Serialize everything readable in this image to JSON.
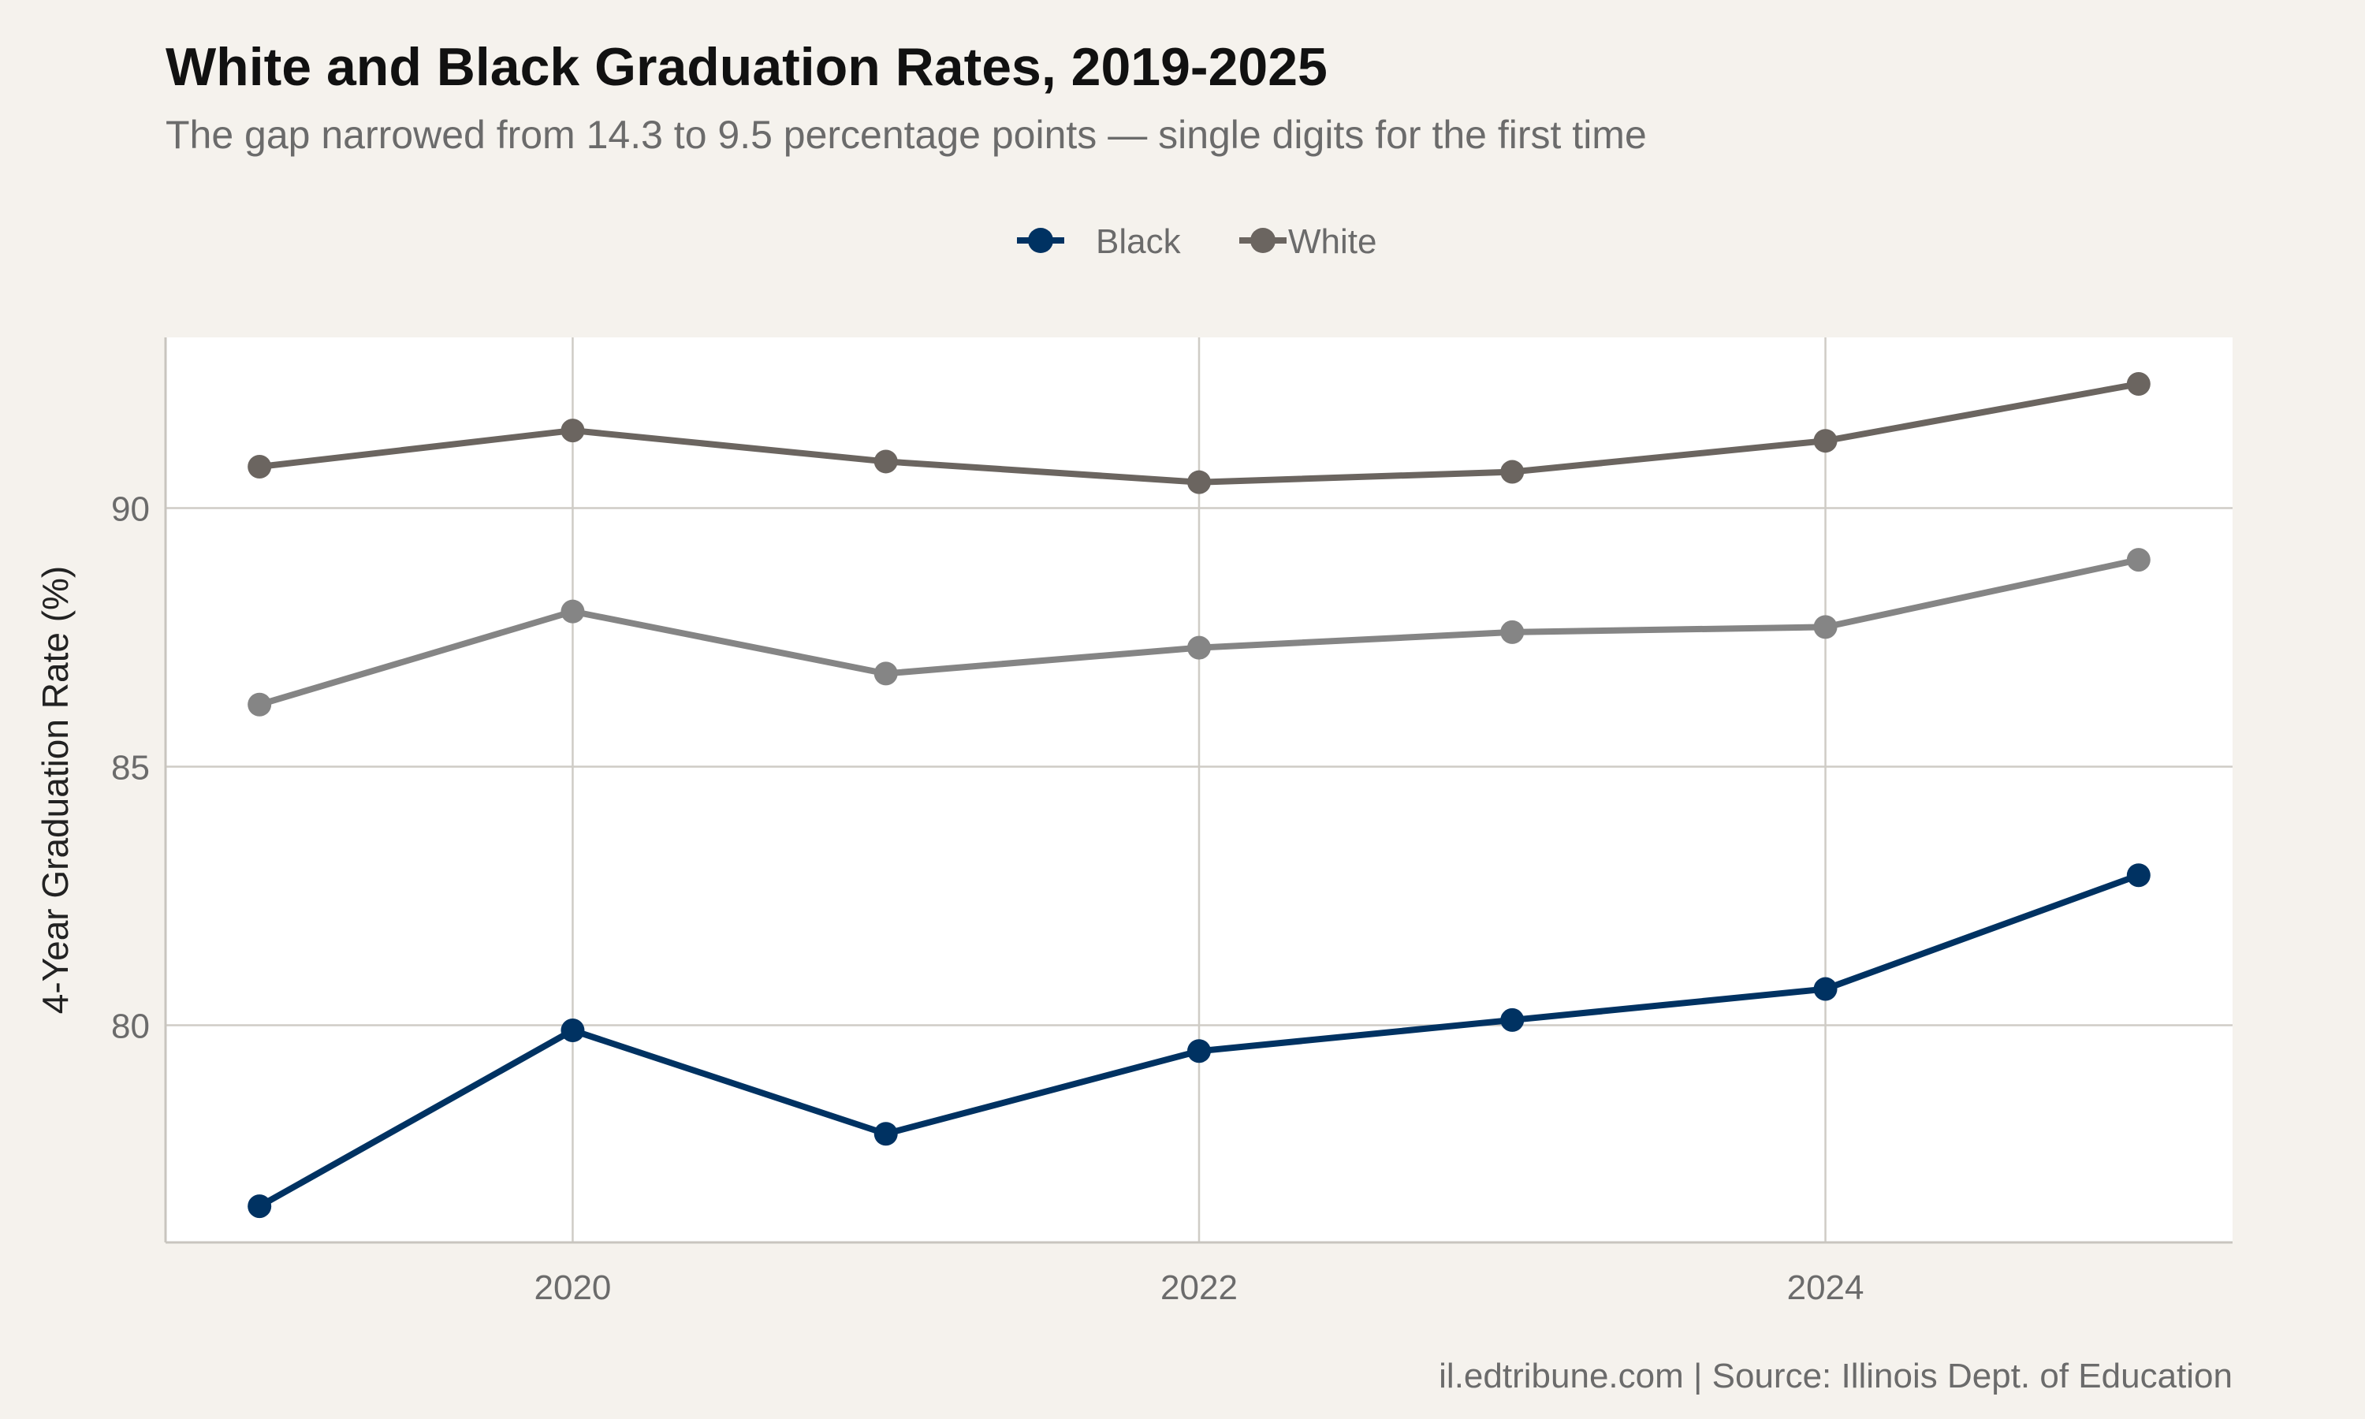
{
  "chart_data": {
    "type": "line",
    "title": "White and Black Graduation Rates, 2019-2025",
    "subtitle": "The gap narrowed from 14.3 to 9.5 percentage points — single digits for the first time",
    "caption": "il.edtribune.com | Source: Illinois Dept. of Education",
    "xlabel": "",
    "ylabel": "4-Year Graduation Rate (%)",
    "x": [
      2019,
      2020,
      2021,
      2022,
      2023,
      2024,
      2025
    ],
    "xlim": [
      2018.7,
      2025.3
    ],
    "ylim": [
      75.8,
      93.3
    ],
    "x_ticks": [
      2020,
      2022,
      2024
    ],
    "x_tick_labels": [
      "2020",
      "2022",
      "2024"
    ],
    "y_ticks": [
      80,
      85,
      90
    ],
    "y_tick_labels": [
      "80",
      "85",
      "90"
    ],
    "grid": true,
    "legend_position": "top",
    "series": [
      {
        "name": "Black",
        "color": "#003262",
        "values": [
          76.5,
          79.9,
          77.9,
          79.5,
          80.1,
          80.7,
          82.9
        ],
        "in_legend": true
      },
      {
        "name": "White",
        "color": "#6b6560",
        "values": [
          90.8,
          91.5,
          90.9,
          90.5,
          90.7,
          91.3,
          92.4
        ],
        "in_legend": true
      },
      {
        "color": "#858585",
        "values": [
          86.2,
          88.0,
          86.8,
          87.3,
          87.6,
          87.7,
          89.0
        ],
        "in_legend": false
      }
    ]
  }
}
